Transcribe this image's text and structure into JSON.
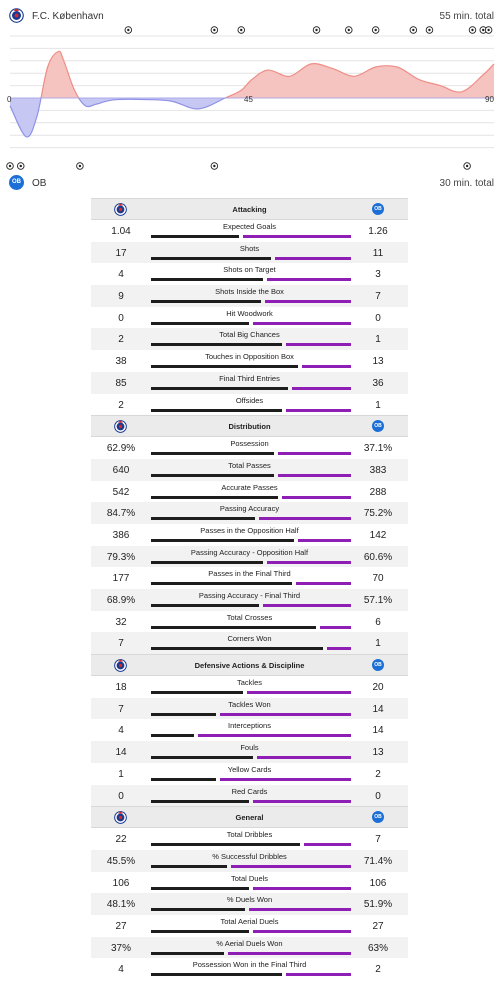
{
  "momentum": {
    "home": {
      "name": "F.C. København",
      "total": "55 min. total"
    },
    "away": {
      "name": "OB",
      "total": "30 min. total",
      "badge": "OB"
    },
    "axis": {
      "start": "0",
      "half": "45",
      "end": "90"
    },
    "colors": {
      "home_fill": "#f5c4c0",
      "home_line": "#ef8d86",
      "away_fill": "#c6c8f3",
      "away_line": "#8f92e6"
    }
  },
  "chart_data": {
    "type": "area",
    "x": [
      0,
      3,
      5,
      7,
      9,
      10,
      12,
      14,
      16,
      18,
      20,
      25,
      30,
      35,
      40,
      43,
      45,
      48,
      52,
      56,
      60,
      64,
      68,
      72,
      76,
      80,
      84,
      88,
      90
    ],
    "y": [
      -5,
      -25,
      -12,
      20,
      30,
      24,
      5,
      -5,
      -4,
      -2,
      -1,
      -1,
      -2,
      -7,
      0,
      5,
      12,
      18,
      14,
      22,
      19,
      14,
      20,
      20,
      12,
      8,
      4,
      15,
      22
    ],
    "series": [
      {
        "name": "F.C. København",
        "color": "#ef8d86"
      },
      {
        "name": "OB",
        "color": "#8f92e6"
      }
    ],
    "home_goal_minutes": [
      22,
      38,
      43,
      57,
      63,
      68,
      75,
      78,
      86,
      88,
      89
    ],
    "away_goal_minutes": [
      0,
      2,
      13,
      38,
      85
    ]
  },
  "sections": [
    {
      "title": "Attacking",
      "rows": [
        {
          "label": "Expected Goals",
          "home": "1.04",
          "away": "1.26",
          "share": 0.45
        },
        {
          "label": "Shots",
          "home": "17",
          "away": "11",
          "share": 0.61
        },
        {
          "label": "Shots on Target",
          "home": "4",
          "away": "3",
          "share": 0.57
        },
        {
          "label": "Shots Inside the Box",
          "home": "9",
          "away": "7",
          "share": 0.56
        },
        {
          "label": "Hit Woodwork",
          "home": "0",
          "away": "0",
          "share": 0.5
        },
        {
          "label": "Total Big Chances",
          "home": "2",
          "away": "1",
          "share": 0.67
        },
        {
          "label": "Touches in Opposition Box",
          "home": "38",
          "away": "13",
          "share": 0.75
        },
        {
          "label": "Final Third Entries",
          "home": "85",
          "away": "36",
          "share": 0.7
        },
        {
          "label": "Offsides",
          "home": "2",
          "away": "1",
          "share": 0.67
        }
      ]
    },
    {
      "title": "Distribution",
      "rows": [
        {
          "label": "Possession",
          "home": "62.9%",
          "away": "37.1%",
          "share": 0.63
        },
        {
          "label": "Total Passes",
          "home": "640",
          "away": "383",
          "share": 0.63
        },
        {
          "label": "Accurate Passes",
          "home": "542",
          "away": "288",
          "share": 0.65
        },
        {
          "label": "Passing Accuracy",
          "home": "84.7%",
          "away": "75.2%",
          "share": 0.53
        },
        {
          "label": "Passes in the Opposition Half",
          "home": "386",
          "away": "142",
          "share": 0.73
        },
        {
          "label": "Passing Accuracy - Opposition Half",
          "home": "79.3%",
          "away": "60.6%",
          "share": 0.57
        },
        {
          "label": "Passes in the Final Third",
          "home": "177",
          "away": "70",
          "share": 0.72
        },
        {
          "label": "Passing Accuracy - Final Third",
          "home": "68.9%",
          "away": "57.1%",
          "share": 0.55
        },
        {
          "label": "Total Crosses",
          "home": "32",
          "away": "6",
          "share": 0.84
        },
        {
          "label": "Corners Won",
          "home": "7",
          "away": "1",
          "share": 0.88
        }
      ]
    },
    {
      "title": "Defensive Actions & Discipline",
      "rows": [
        {
          "label": "Tackles",
          "home": "18",
          "away": "20",
          "share": 0.47
        },
        {
          "label": "Tackles Won",
          "home": "7",
          "away": "14",
          "share": 0.33
        },
        {
          "label": "Interceptions",
          "home": "4",
          "away": "14",
          "share": 0.22
        },
        {
          "label": "Fouls",
          "home": "14",
          "away": "13",
          "share": 0.52
        },
        {
          "label": "Yellow Cards",
          "home": "1",
          "away": "2",
          "share": 0.33
        },
        {
          "label": "Red Cards",
          "home": "0",
          "away": "0",
          "share": 0.5
        }
      ]
    },
    {
      "title": "General",
      "rows": [
        {
          "label": "Total Dribbles",
          "home": "22",
          "away": "7",
          "share": 0.76
        },
        {
          "label": "% Successful Dribbles",
          "home": "45.5%",
          "away": "71.4%",
          "share": 0.39
        },
        {
          "label": "Total Duels",
          "home": "106",
          "away": "106",
          "share": 0.5
        },
        {
          "label": "% Duels Won",
          "home": "48.1%",
          "away": "51.9%",
          "share": 0.48
        },
        {
          "label": "Total Aerial Duels",
          "home": "27",
          "away": "27",
          "share": 0.5
        },
        {
          "label": "% Aerial Duels Won",
          "home": "37%",
          "away": "63%",
          "share": 0.37
        },
        {
          "label": "Possession Won in the Final Third",
          "home": "4",
          "away": "2",
          "share": 0.67
        }
      ]
    }
  ]
}
